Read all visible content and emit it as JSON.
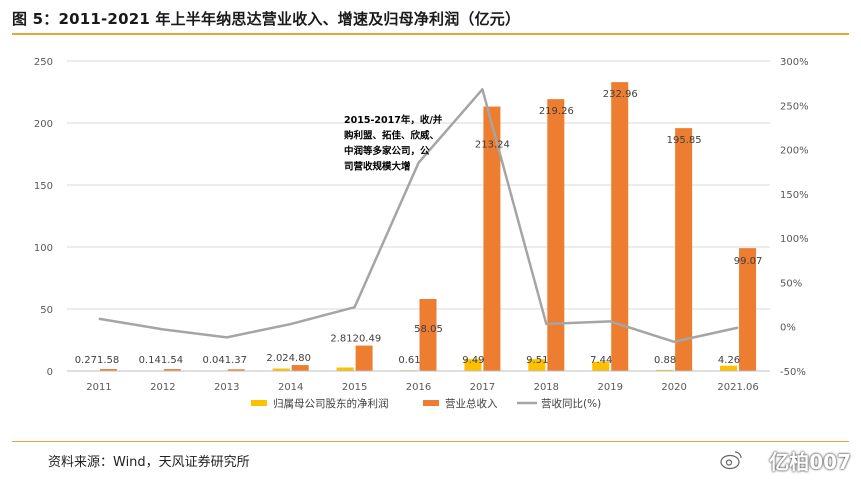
{
  "title": "图 5：2011-2021 年上半年纳思达营业收入、增速及归母净利润（亿元）",
  "source": "资料来源：Wind，天风证券研究所",
  "watermark": "亿柏007",
  "chart_data": {
    "type": "bar",
    "categories": [
      "2011",
      "2012",
      "2013",
      "2014",
      "2015",
      "2016",
      "2017",
      "2018",
      "2019",
      "2020",
      "2021.06"
    ],
    "series": [
      {
        "name": "归属母公司股东的净利润",
        "type": "bar",
        "axis": "left",
        "color": "#FFC000",
        "values": [
          0.27,
          0.14,
          0.04,
          2.02,
          2.81,
          0.61,
          9.49,
          9.51,
          7.44,
          0.88,
          4.26
        ],
        "labels": [
          "0.27",
          "0.14",
          "0.04",
          "2.02",
          "2.81",
          "0.61",
          "9.49",
          "9.51",
          "7.44",
          "0.88",
          "4.26"
        ]
      },
      {
        "name": "营业总收入",
        "type": "bar",
        "axis": "left",
        "color": "#ED7D31",
        "values": [
          1.58,
          1.54,
          1.37,
          4.8,
          20.49,
          58.05,
          213.24,
          219.26,
          232.96,
          195.85,
          99.07
        ],
        "labels": [
          "1.58",
          "1.54",
          "1.37",
          "4.80",
          "20.49",
          "58.05",
          "213.24",
          "219.26",
          "232.96",
          "195.85",
          "99.07"
        ]
      },
      {
        "name": "营收同比(%)",
        "type": "line",
        "axis": "right",
        "color": "#A5A5A5",
        "values": [
          9,
          -3,
          -12,
          3,
          22,
          185,
          268,
          3,
          6,
          -17,
          -1
        ]
      }
    ],
    "y_left": {
      "min": 0,
      "max": 250,
      "ticks": [
        "0",
        "50",
        "100",
        "150",
        "200",
        "250"
      ]
    },
    "y_right": {
      "min": -50,
      "max": 300,
      "ticks": [
        "-50%",
        "0%",
        "50%",
        "100%",
        "150%",
        "200%",
        "250%",
        "300%"
      ]
    },
    "annotation": [
      "2015-2017年，收/并",
      "购利盟、拓佳、欣威、",
      "中润等多家公司，公",
      "司营收规模大增"
    ],
    "grid": true,
    "legend_position": "bottom"
  }
}
